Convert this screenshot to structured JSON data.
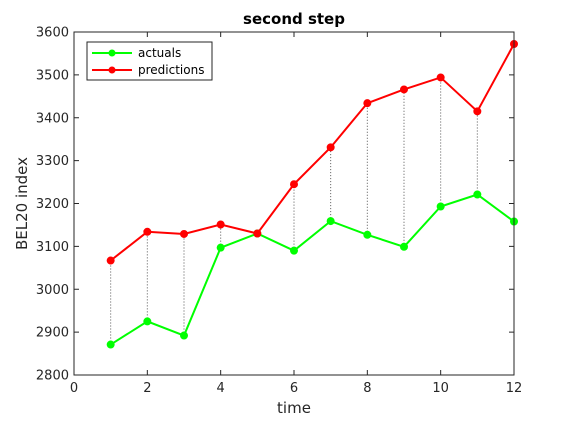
{
  "chart_data": {
    "type": "line",
    "title": "second step",
    "xlabel": "time",
    "ylabel": "BEL20 index",
    "xlim": [
      0,
      12
    ],
    "ylim": [
      2800,
      3600
    ],
    "xticks": [
      0,
      2,
      4,
      6,
      8,
      10,
      12
    ],
    "yticks": [
      2800,
      2900,
      3000,
      3100,
      3200,
      3300,
      3400,
      3500,
      3600
    ],
    "grid": false,
    "legend_position": "top-left",
    "x": [
      1,
      2,
      3,
      4,
      5,
      6,
      7,
      8,
      9,
      10,
      11,
      12
    ],
    "series": [
      {
        "name": "actuals",
        "color": "#00ff00",
        "values": [
          2871,
          2925,
          2892,
          3097,
          3130,
          3090,
          3159,
          3127,
          3099,
          3193,
          3221,
          3158
        ]
      },
      {
        "name": "predictions",
        "color": "#ff0000",
        "values": [
          3067,
          3134,
          3129,
          3151,
          3130,
          3245,
          3331,
          3434,
          3466,
          3494,
          3415,
          3572
        ]
      }
    ],
    "connector_style": "dotted",
    "connector_color": "#555555"
  }
}
